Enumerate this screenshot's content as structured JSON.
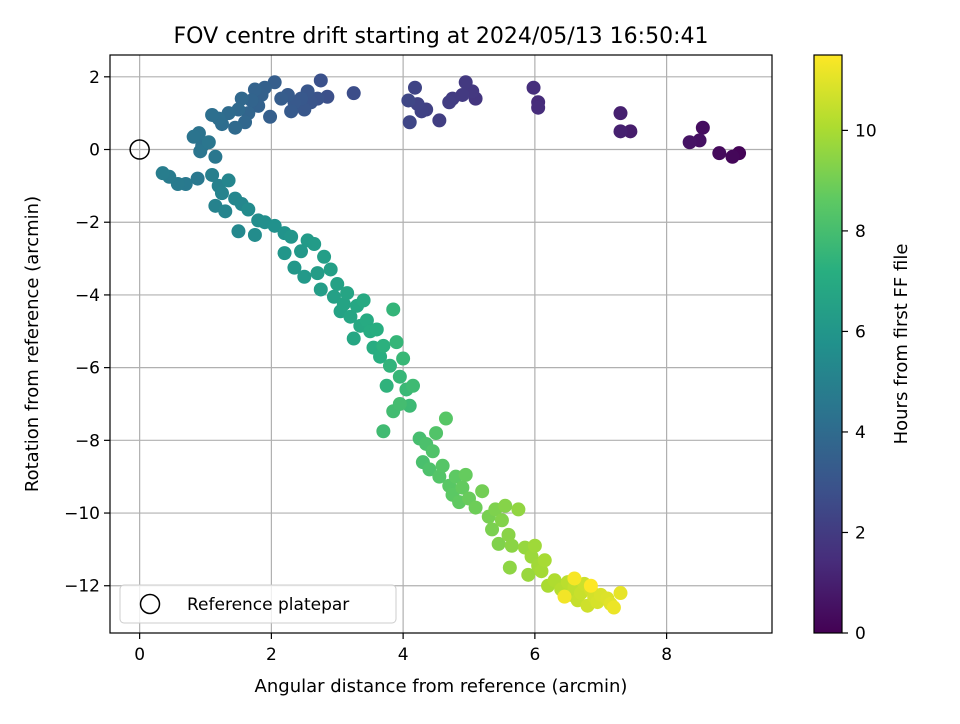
{
  "chart_data": {
    "type": "scatter",
    "title": "FOV centre drift starting at 2024/05/13 16:50:41",
    "xlabel": "Angular distance from reference (arcmin)",
    "ylabel": "Rotation from reference (arcmin)",
    "xlim": [
      -0.45,
      9.6
    ],
    "ylim": [
      -13.3,
      2.6
    ],
    "x_ticks": [
      "0",
      "2",
      "4",
      "6",
      "8"
    ],
    "y_ticks": [
      "2",
      "0",
      "−2",
      "−4",
      "−6",
      "−8",
      "−10",
      "−12"
    ],
    "grid": true,
    "legend": {
      "position": "lower-left",
      "entries": [
        {
          "label": "Reference platepar",
          "marker": "open-circle"
        }
      ]
    },
    "reference_point": {
      "x": 0,
      "y": 0
    },
    "colorbar": {
      "label": "Hours from first FF file",
      "colormap": "viridis",
      "range": [
        0,
        11.5
      ],
      "ticks": [
        "0",
        "2",
        "4",
        "6",
        "8",
        "10"
      ]
    },
    "points": [
      {
        "x": 9.1,
        "y": -0.1,
        "hours": 0.1
      },
      {
        "x": 9.0,
        "y": -0.2,
        "hours": 0.2
      },
      {
        "x": 8.8,
        "y": -0.1,
        "hours": 0.3
      },
      {
        "x": 8.55,
        "y": 0.6,
        "hours": 0.4
      },
      {
        "x": 8.5,
        "y": 0.25,
        "hours": 0.5
      },
      {
        "x": 8.35,
        "y": 0.2,
        "hours": 0.6
      },
      {
        "x": 7.45,
        "y": 0.5,
        "hours": 0.9
      },
      {
        "x": 7.3,
        "y": 1.0,
        "hours": 1.0
      },
      {
        "x": 7.3,
        "y": 0.5,
        "hours": 1.05
      },
      {
        "x": 6.05,
        "y": 1.3,
        "hours": 1.4
      },
      {
        "x": 6.05,
        "y": 1.15,
        "hours": 1.45
      },
      {
        "x": 5.98,
        "y": 1.7,
        "hours": 1.5
      },
      {
        "x": 5.1,
        "y": 1.4,
        "hours": 1.8
      },
      {
        "x": 5.05,
        "y": 1.6,
        "hours": 1.85
      },
      {
        "x": 4.95,
        "y": 1.85,
        "hours": 1.9
      },
      {
        "x": 4.9,
        "y": 1.5,
        "hours": 1.95
      },
      {
        "x": 4.75,
        "y": 1.4,
        "hours": 2.0
      },
      {
        "x": 4.7,
        "y": 1.3,
        "hours": 2.05
      },
      {
        "x": 4.55,
        "y": 0.8,
        "hours": 2.1
      },
      {
        "x": 4.35,
        "y": 1.1,
        "hours": 2.2
      },
      {
        "x": 4.28,
        "y": 1.05,
        "hours": 2.25
      },
      {
        "x": 4.22,
        "y": 1.25,
        "hours": 2.3
      },
      {
        "x": 4.18,
        "y": 1.7,
        "hours": 2.35
      },
      {
        "x": 4.1,
        "y": 0.75,
        "hours": 2.4
      },
      {
        "x": 4.08,
        "y": 1.35,
        "hours": 2.45
      },
      {
        "x": 3.25,
        "y": 1.55,
        "hours": 2.7
      },
      {
        "x": 2.85,
        "y": 1.45,
        "hours": 2.8
      },
      {
        "x": 2.75,
        "y": 1.9,
        "hours": 2.85
      },
      {
        "x": 2.7,
        "y": 1.4,
        "hours": 2.9
      },
      {
        "x": 2.6,
        "y": 1.3,
        "hours": 3.0
      },
      {
        "x": 2.55,
        "y": 1.6,
        "hours": 3.05
      },
      {
        "x": 2.5,
        "y": 1.1,
        "hours": 3.1
      },
      {
        "x": 2.45,
        "y": 1.4,
        "hours": 3.15
      },
      {
        "x": 2.35,
        "y": 1.3,
        "hours": 3.2
      },
      {
        "x": 2.3,
        "y": 1.05,
        "hours": 3.25
      },
      {
        "x": 2.25,
        "y": 1.5,
        "hours": 3.3
      },
      {
        "x": 2.15,
        "y": 1.4,
        "hours": 3.35
      },
      {
        "x": 2.05,
        "y": 1.85,
        "hours": 3.4
      },
      {
        "x": 1.98,
        "y": 0.9,
        "hours": 3.45
      },
      {
        "x": 1.9,
        "y": 1.7,
        "hours": 3.5
      },
      {
        "x": 1.85,
        "y": 1.5,
        "hours": 3.55
      },
      {
        "x": 1.8,
        "y": 1.2,
        "hours": 3.6
      },
      {
        "x": 1.75,
        "y": 1.65,
        "hours": 3.65
      },
      {
        "x": 1.7,
        "y": 1.35,
        "hours": 3.7
      },
      {
        "x": 1.65,
        "y": 1.0,
        "hours": 3.75
      },
      {
        "x": 1.6,
        "y": 0.75,
        "hours": 3.8
      },
      {
        "x": 1.55,
        "y": 1.4,
        "hours": 3.85
      },
      {
        "x": 1.5,
        "y": 1.1,
        "hours": 3.9
      },
      {
        "x": 1.45,
        "y": 0.6,
        "hours": 3.95
      },
      {
        "x": 1.35,
        "y": 1.0,
        "hours": 4.0
      },
      {
        "x": 1.25,
        "y": 0.7,
        "hours": 4.1
      },
      {
        "x": 1.2,
        "y": 0.85,
        "hours": 4.15
      },
      {
        "x": 1.1,
        "y": 0.95,
        "hours": 4.2
      },
      {
        "x": 0.95,
        "y": 0.1,
        "hours": 4.3
      },
      {
        "x": 0.9,
        "y": 0.45,
        "hours": 4.35
      },
      {
        "x": 0.82,
        "y": 0.35,
        "hours": 4.4
      },
      {
        "x": 0.92,
        "y": -0.05,
        "hours": 4.45
      },
      {
        "x": 1.05,
        "y": 0.2,
        "hours": 4.5
      },
      {
        "x": 1.15,
        "y": -0.2,
        "hours": 4.55
      },
      {
        "x": 0.88,
        "y": -0.8,
        "hours": 4.6
      },
      {
        "x": 0.7,
        "y": -0.95,
        "hours": 4.65
      },
      {
        "x": 0.58,
        "y": -0.95,
        "hours": 4.7
      },
      {
        "x": 0.45,
        "y": -0.75,
        "hours": 4.75
      },
      {
        "x": 0.35,
        "y": -0.65,
        "hours": 4.8
      },
      {
        "x": 1.1,
        "y": -0.7,
        "hours": 4.9
      },
      {
        "x": 1.2,
        "y": -1.0,
        "hours": 5.0
      },
      {
        "x": 1.15,
        "y": -1.55,
        "hours": 5.05
      },
      {
        "x": 1.25,
        "y": -1.2,
        "hours": 5.1
      },
      {
        "x": 1.3,
        "y": -1.7,
        "hours": 5.15
      },
      {
        "x": 1.35,
        "y": -0.85,
        "hours": 5.2
      },
      {
        "x": 1.45,
        "y": -1.35,
        "hours": 5.25
      },
      {
        "x": 1.55,
        "y": -1.5,
        "hours": 5.3
      },
      {
        "x": 1.5,
        "y": -2.25,
        "hours": 5.35
      },
      {
        "x": 1.65,
        "y": -1.65,
        "hours": 5.45
      },
      {
        "x": 1.75,
        "y": -2.35,
        "hours": 5.5
      },
      {
        "x": 1.8,
        "y": -1.95,
        "hours": 5.55
      },
      {
        "x": 1.9,
        "y": -2.0,
        "hours": 5.65
      },
      {
        "x": 2.05,
        "y": -2.1,
        "hours": 5.75
      },
      {
        "x": 2.2,
        "y": -2.3,
        "hours": 5.85
      },
      {
        "x": 2.3,
        "y": -2.4,
        "hours": 5.95
      },
      {
        "x": 2.2,
        "y": -2.85,
        "hours": 6.0
      },
      {
        "x": 2.35,
        "y": -3.25,
        "hours": 6.05
      },
      {
        "x": 2.45,
        "y": -2.8,
        "hours": 6.1
      },
      {
        "x": 2.5,
        "y": -3.5,
        "hours": 6.15
      },
      {
        "x": 2.55,
        "y": -2.5,
        "hours": 6.2
      },
      {
        "x": 2.65,
        "y": -2.6,
        "hours": 6.25
      },
      {
        "x": 2.7,
        "y": -3.4,
        "hours": 6.3
      },
      {
        "x": 2.75,
        "y": -3.85,
        "hours": 6.35
      },
      {
        "x": 2.8,
        "y": -2.95,
        "hours": 6.4
      },
      {
        "x": 2.9,
        "y": -3.3,
        "hours": 6.45
      },
      {
        "x": 2.95,
        "y": -4.05,
        "hours": 6.5
      },
      {
        "x": 3.0,
        "y": -3.7,
        "hours": 6.55
      },
      {
        "x": 3.05,
        "y": -4.45,
        "hours": 6.6
      },
      {
        "x": 3.1,
        "y": -4.25,
        "hours": 6.65
      },
      {
        "x": 3.15,
        "y": -3.95,
        "hours": 6.7
      },
      {
        "x": 3.2,
        "y": -4.6,
        "hours": 6.75
      },
      {
        "x": 3.25,
        "y": -5.2,
        "hours": 6.8
      },
      {
        "x": 3.3,
        "y": -4.3,
        "hours": 6.85
      },
      {
        "x": 3.35,
        "y": -4.85,
        "hours": 6.9
      },
      {
        "x": 3.4,
        "y": -4.15,
        "hours": 6.95
      },
      {
        "x": 3.45,
        "y": -4.7,
        "hours": 7.0
      },
      {
        "x": 3.5,
        "y": -5.0,
        "hours": 7.05
      },
      {
        "x": 3.55,
        "y": -5.45,
        "hours": 7.1
      },
      {
        "x": 3.6,
        "y": -4.95,
        "hours": 7.15
      },
      {
        "x": 3.65,
        "y": -5.7,
        "hours": 7.2
      },
      {
        "x": 3.7,
        "y": -5.4,
        "hours": 7.3
      },
      {
        "x": 3.75,
        "y": -6.5,
        "hours": 7.4
      },
      {
        "x": 3.8,
        "y": -5.95,
        "hours": 7.45
      },
      {
        "x": 3.85,
        "y": -4.4,
        "hours": 7.5
      },
      {
        "x": 3.9,
        "y": -5.3,
        "hours": 7.55
      },
      {
        "x": 3.95,
        "y": -6.25,
        "hours": 7.6
      },
      {
        "x": 4.0,
        "y": -5.75,
        "hours": 7.65
      },
      {
        "x": 4.05,
        "y": -6.6,
        "hours": 7.7
      },
      {
        "x": 4.1,
        "y": -7.05,
        "hours": 7.75
      },
      {
        "x": 4.15,
        "y": -6.5,
        "hours": 7.8
      },
      {
        "x": 3.7,
        "y": -7.75,
        "hours": 7.85
      },
      {
        "x": 3.85,
        "y": -7.2,
        "hours": 7.9
      },
      {
        "x": 3.95,
        "y": -7.0,
        "hours": 7.95
      },
      {
        "x": 4.25,
        "y": -7.95,
        "hours": 8.0
      },
      {
        "x": 4.3,
        "y": -8.6,
        "hours": 8.1
      },
      {
        "x": 4.35,
        "y": -8.1,
        "hours": 8.15
      },
      {
        "x": 4.4,
        "y": -8.8,
        "hours": 8.2
      },
      {
        "x": 4.45,
        "y": -8.3,
        "hours": 8.25
      },
      {
        "x": 4.5,
        "y": -7.8,
        "hours": 8.3
      },
      {
        "x": 4.55,
        "y": -9.0,
        "hours": 8.35
      },
      {
        "x": 4.6,
        "y": -8.7,
        "hours": 8.4
      },
      {
        "x": 4.65,
        "y": -7.4,
        "hours": 8.45
      },
      {
        "x": 4.7,
        "y": -9.25,
        "hours": 8.5
      },
      {
        "x": 4.75,
        "y": -9.5,
        "hours": 8.55
      },
      {
        "x": 4.8,
        "y": -9.0,
        "hours": 8.6
      },
      {
        "x": 4.85,
        "y": -9.7,
        "hours": 8.65
      },
      {
        "x": 4.9,
        "y": -9.3,
        "hours": 8.7
      },
      {
        "x": 4.95,
        "y": -8.95,
        "hours": 8.75
      },
      {
        "x": 5.0,
        "y": -9.6,
        "hours": 8.8
      },
      {
        "x": 5.1,
        "y": -9.85,
        "hours": 8.9
      },
      {
        "x": 5.2,
        "y": -9.4,
        "hours": 9.0
      },
      {
        "x": 5.3,
        "y": -10.1,
        "hours": 9.1
      },
      {
        "x": 5.35,
        "y": -10.45,
        "hours": 9.15
      },
      {
        "x": 5.4,
        "y": -9.9,
        "hours": 9.2
      },
      {
        "x": 5.45,
        "y": -10.85,
        "hours": 9.25
      },
      {
        "x": 5.5,
        "y": -10.2,
        "hours": 9.3
      },
      {
        "x": 5.55,
        "y": -9.8,
        "hours": 9.35
      },
      {
        "x": 5.6,
        "y": -10.6,
        "hours": 9.4
      },
      {
        "x": 5.65,
        "y": -10.9,
        "hours": 9.45
      },
      {
        "x": 5.62,
        "y": -11.5,
        "hours": 9.5
      },
      {
        "x": 5.75,
        "y": -9.9,
        "hours": 9.55
      },
      {
        "x": 5.85,
        "y": -10.95,
        "hours": 9.65
      },
      {
        "x": 5.9,
        "y": -11.7,
        "hours": 9.7
      },
      {
        "x": 5.95,
        "y": -11.2,
        "hours": 9.75
      },
      {
        "x": 6.0,
        "y": -10.9,
        "hours": 9.8
      },
      {
        "x": 6.05,
        "y": -11.45,
        "hours": 9.85
      },
      {
        "x": 6.1,
        "y": -11.6,
        "hours": 9.9
      },
      {
        "x": 6.15,
        "y": -11.3,
        "hours": 9.95
      },
      {
        "x": 6.2,
        "y": -12.0,
        "hours": 10.0
      },
      {
        "x": 6.3,
        "y": -11.85,
        "hours": 10.1
      },
      {
        "x": 6.4,
        "y": -12.1,
        "hours": 10.2
      },
      {
        "x": 6.5,
        "y": -11.9,
        "hours": 10.3
      },
      {
        "x": 6.55,
        "y": -12.25,
        "hours": 10.35
      },
      {
        "x": 6.6,
        "y": -12.05,
        "hours": 10.4
      },
      {
        "x": 6.65,
        "y": -12.4,
        "hours": 10.5
      },
      {
        "x": 6.7,
        "y": -12.2,
        "hours": 10.55
      },
      {
        "x": 6.75,
        "y": -11.95,
        "hours": 10.6
      },
      {
        "x": 6.8,
        "y": -12.55,
        "hours": 10.65
      },
      {
        "x": 6.85,
        "y": -12.1,
        "hours": 10.7
      },
      {
        "x": 6.9,
        "y": -12.3,
        "hours": 10.75
      },
      {
        "x": 6.95,
        "y": -12.45,
        "hours": 10.8
      },
      {
        "x": 7.0,
        "y": -12.25,
        "hours": 10.85
      },
      {
        "x": 7.1,
        "y": -12.35,
        "hours": 10.9
      },
      {
        "x": 7.15,
        "y": -12.5,
        "hours": 11.0
      },
      {
        "x": 7.3,
        "y": -12.2,
        "hours": 11.1
      },
      {
        "x": 7.2,
        "y": -12.6,
        "hours": 11.2
      },
      {
        "x": 6.45,
        "y": -12.3,
        "hours": 11.3
      },
      {
        "x": 6.6,
        "y": -11.8,
        "hours": 11.4
      },
      {
        "x": 6.85,
        "y": -12.0,
        "hours": 11.5
      }
    ]
  }
}
